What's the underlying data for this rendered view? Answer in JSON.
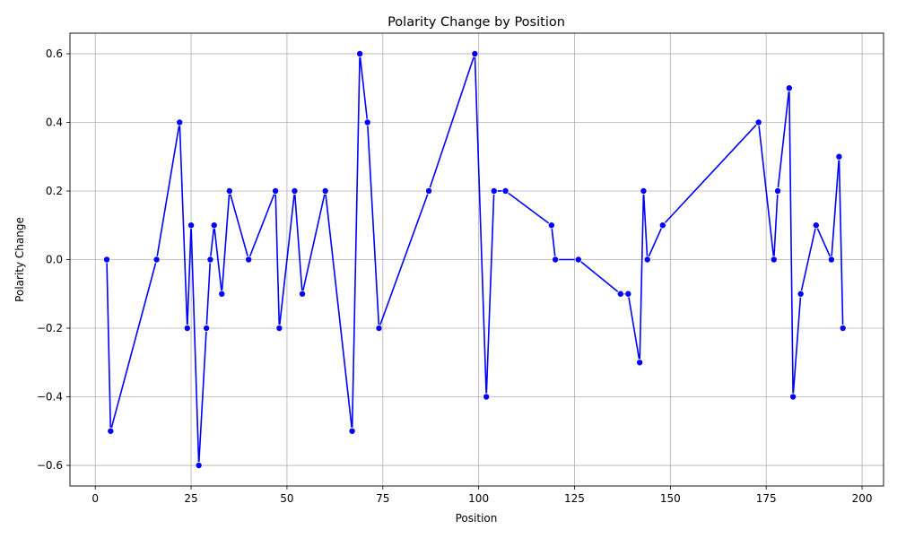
{
  "chart_data": {
    "type": "line",
    "title": "Polarity Change by Position",
    "xlabel": "Position",
    "ylabel": "Polarity Change",
    "xlim": [
      -6.6,
      205.6
    ],
    "ylim": [
      -0.66,
      0.66
    ],
    "xticks": [
      0,
      25,
      50,
      75,
      100,
      125,
      150,
      175,
      200
    ],
    "yticks": [
      -0.6,
      -0.4,
      -0.2,
      0.0,
      0.2,
      0.4,
      0.6
    ],
    "xtick_labels": [
      "0",
      "25",
      "50",
      "75",
      "100",
      "125",
      "150",
      "175",
      "200"
    ],
    "ytick_labels": [
      "−0.6",
      "−0.4",
      "−0.2",
      "0.0",
      "0.2",
      "0.4",
      "0.6"
    ],
    "grid": true,
    "line_color": "#0000ff",
    "marker": "circle",
    "series": [
      {
        "x": [
          3,
          4,
          16,
          22,
          24,
          25,
          27,
          29,
          30,
          31,
          33,
          35,
          40,
          47,
          48,
          52,
          54,
          60,
          67,
          69,
          71,
          74,
          87,
          99,
          102,
          104,
          107,
          119,
          120,
          126,
          137,
          139,
          142,
          143,
          144,
          148,
          173,
          177,
          178,
          181,
          182,
          184,
          188,
          192,
          194,
          195
        ],
        "y": [
          0.0,
          -0.5,
          0.0,
          0.4,
          -0.2,
          0.1,
          -0.6,
          -0.2,
          0.0,
          0.1,
          -0.1,
          0.2,
          0.0,
          0.2,
          -0.2,
          0.2,
          -0.1,
          0.2,
          -0.5,
          0.6,
          0.4,
          -0.2,
          0.2,
          0.6,
          -0.4,
          0.2,
          0.2,
          0.1,
          0.0,
          0.0,
          -0.1,
          -0.1,
          -0.3,
          0.2,
          0.0,
          0.1,
          0.4,
          0.0,
          0.2,
          0.5,
          -0.4,
          -0.1,
          0.1,
          0.0,
          0.3,
          -0.2
        ]
      }
    ]
  }
}
